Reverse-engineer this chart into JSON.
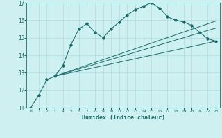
{
  "title": "",
  "xlabel": "Humidex (Indice chaleur)",
  "bg_color": "#cff0f0",
  "grid_color": "#aadddd",
  "line_color": "#1a6b6b",
  "xlim": [
    -0.5,
    23.5
  ],
  "ylim": [
    11,
    17
  ],
  "yticks": [
    11,
    12,
    13,
    14,
    15,
    16,
    17
  ],
  "xticks": [
    0,
    1,
    2,
    3,
    4,
    5,
    6,
    7,
    8,
    9,
    10,
    11,
    12,
    13,
    14,
    15,
    16,
    17,
    18,
    19,
    20,
    21,
    22,
    23
  ],
  "series_main": {
    "x": [
      0,
      1,
      2,
      3,
      4,
      5,
      6,
      7,
      8,
      9,
      10,
      11,
      12,
      13,
      14,
      15,
      16,
      17,
      18,
      19,
      20,
      21,
      22,
      23
    ],
    "y": [
      11.0,
      11.7,
      12.6,
      12.8,
      13.4,
      14.6,
      15.5,
      15.8,
      15.3,
      15.0,
      15.5,
      15.9,
      16.3,
      16.6,
      16.8,
      17.0,
      16.7,
      16.2,
      16.0,
      15.9,
      15.7,
      15.3,
      14.95,
      14.8
    ]
  },
  "series_line1": {
    "x": [
      3,
      23
    ],
    "y": [
      12.8,
      14.8
    ]
  },
  "series_line2": {
    "x": [
      3,
      23
    ],
    "y": [
      12.8,
      15.55
    ]
  },
  "series_line3": {
    "x": [
      3,
      23
    ],
    "y": [
      12.8,
      15.95
    ]
  }
}
